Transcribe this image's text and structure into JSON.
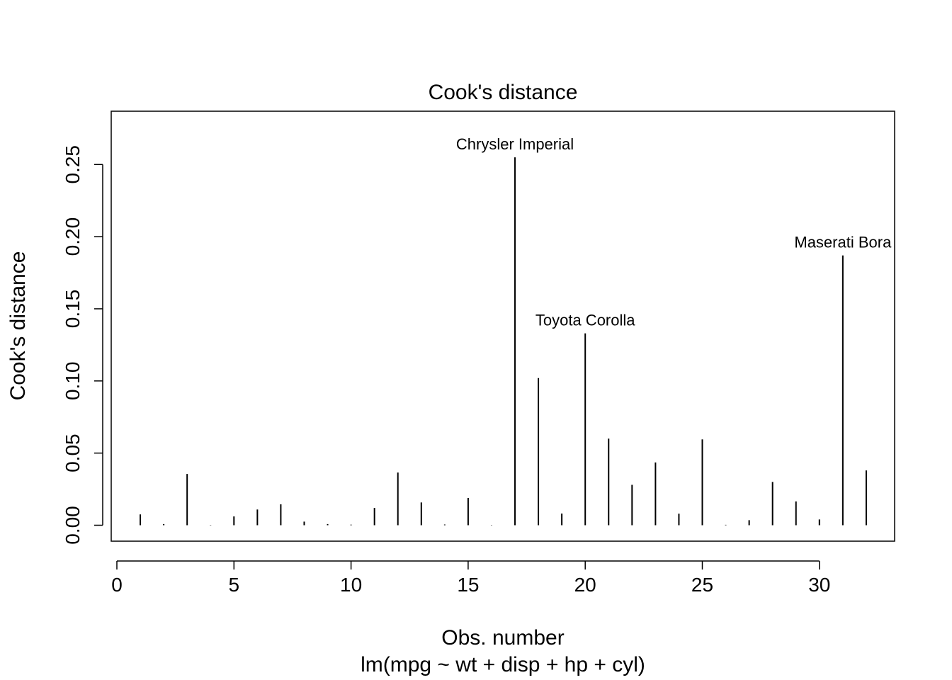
{
  "chart_data": {
    "type": "bar",
    "title": "Cook's distance",
    "xlabel": "Obs. number",
    "subtitle": "lm(mpg ~ wt + disp + hp + cyl)",
    "ylabel": "Cook's distance",
    "x": [
      1,
      2,
      3,
      4,
      5,
      6,
      7,
      8,
      9,
      10,
      11,
      12,
      13,
      14,
      15,
      16,
      17,
      18,
      19,
      20,
      21,
      22,
      23,
      24,
      25,
      26,
      27,
      28,
      29,
      30,
      31,
      32
    ],
    "values": [
      0.0075,
      0.0008,
      0.0355,
      0.0002,
      0.0061,
      0.0109,
      0.0145,
      0.0025,
      0.0008,
      0.0004,
      0.012,
      0.0365,
      0.0158,
      0.0005,
      0.0189,
      0.0002,
      0.255,
      0.102,
      0.0081,
      0.133,
      0.06,
      0.028,
      0.0435,
      0.008,
      0.0595,
      0.0003,
      0.0035,
      0.03,
      0.0165,
      0.004,
      0.187,
      0.038
    ],
    "xlim": [
      0,
      32
    ],
    "ylim": [
      0,
      0.27
    ],
    "xticks": [
      "0",
      "5",
      "10",
      "15",
      "20",
      "25",
      "30"
    ],
    "yticks": [
      "0.00",
      "0.05",
      "0.10",
      "0.15",
      "0.20",
      "0.25"
    ],
    "annotations": [
      {
        "x": 17,
        "text": "Chrysler Imperial"
      },
      {
        "x": 20,
        "text": "Toyota Corolla"
      },
      {
        "x": 31,
        "text": "Maserati Bora"
      }
    ],
    "grid": false
  }
}
